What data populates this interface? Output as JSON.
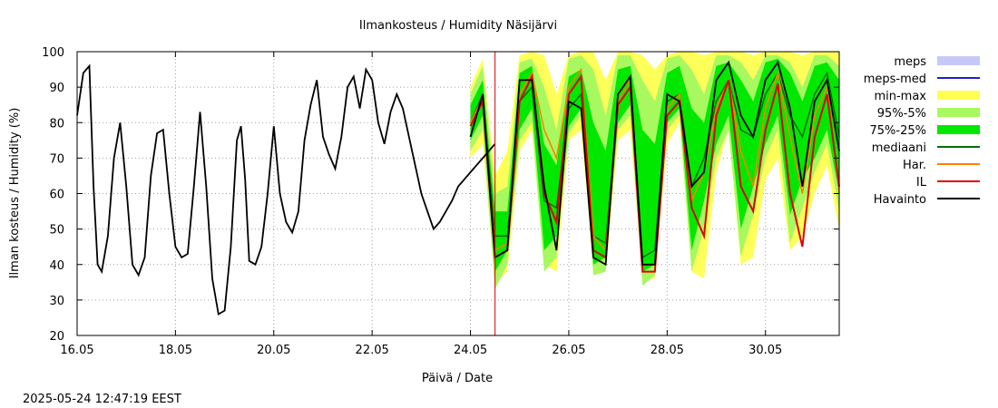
{
  "chart_data": {
    "type": "line",
    "title": "Ilmankosteus / Humidity  Näsijärvi",
    "xlabel": "Päivä / Date",
    "ylabel": "Ilman kosteus / Humidity (%)",
    "timestamp": "2025-05-24 12:47:19 EEST",
    "xlim": [
      "2025-05-16",
      "2025-05-31T12:00"
    ],
    "ylim": [
      20,
      100
    ],
    "yticks": [
      20,
      30,
      40,
      50,
      60,
      70,
      80,
      90,
      100
    ],
    "xticks": [
      {
        "date": "2025-05-16",
        "label": "16.05"
      },
      {
        "date": "2025-05-18",
        "label": "18.05"
      },
      {
        "date": "2025-05-20",
        "label": "20.05"
      },
      {
        "date": "2025-05-22",
        "label": "22.05"
      },
      {
        "date": "2025-05-24",
        "label": "24.05"
      },
      {
        "date": "2025-05-26",
        "label": "26.05"
      },
      {
        "date": "2025-05-28",
        "label": "28.05"
      },
      {
        "date": "2025-05-30",
        "label": "30.05"
      }
    ],
    "grid": true,
    "legend_position": "right",
    "forecast_start": "2025-05-24T12:00",
    "forecast_line_color": "#e00000",
    "legend": [
      {
        "label": "meps",
        "kind": "band",
        "color": "#c8c8f8"
      },
      {
        "label": "meps-med",
        "kind": "line",
        "color": "#2020c0"
      },
      {
        "label": "min-max",
        "kind": "band",
        "color": "#ffff50"
      },
      {
        "label": "95%-5%",
        "kind": "band",
        "color": "#a8f860"
      },
      {
        "label": "75%-25%",
        "kind": "band",
        "color": "#00e800"
      },
      {
        "label": "mediaani",
        "kind": "line",
        "color": "#007000"
      },
      {
        "label": "Har.",
        "kind": "line",
        "color": "#ff8000"
      },
      {
        "label": "IL",
        "kind": "line",
        "color": "#e00000"
      },
      {
        "label": "Havainto",
        "kind": "line",
        "color": "#000000"
      }
    ],
    "observation": {
      "name": "Havainto",
      "x": [
        "2025-05-16T00:00",
        "2025-05-16T03:00",
        "2025-05-16T06:00",
        "2025-05-16T08:00",
        "2025-05-16T10:00",
        "2025-05-16T12:00",
        "2025-05-16T15:00",
        "2025-05-16T18:00",
        "2025-05-16T21:00",
        "2025-05-17T00:00",
        "2025-05-17T03:00",
        "2025-05-17T06:00",
        "2025-05-17T09:00",
        "2025-05-17T12:00",
        "2025-05-17T15:00",
        "2025-05-17T18:00",
        "2025-05-17T21:00",
        "2025-05-18T00:00",
        "2025-05-18T03:00",
        "2025-05-18T06:00",
        "2025-05-18T09:00",
        "2025-05-18T12:00",
        "2025-05-18T15:00",
        "2025-05-18T18:00",
        "2025-05-18T21:00",
        "2025-05-19T00:00",
        "2025-05-19T03:00",
        "2025-05-19T06:00",
        "2025-05-19T08:00",
        "2025-05-19T10:00",
        "2025-05-19T12:00",
        "2025-05-19T15:00",
        "2025-05-19T18:00",
        "2025-05-19T21:00",
        "2025-05-20T00:00",
        "2025-05-20T03:00",
        "2025-05-20T06:00",
        "2025-05-20T09:00",
        "2025-05-20T12:00",
        "2025-05-20T15:00",
        "2025-05-20T18:00",
        "2025-05-20T21:00",
        "2025-05-21T00:00",
        "2025-05-21T03:00",
        "2025-05-21T06:00",
        "2025-05-21T09:00",
        "2025-05-21T12:00",
        "2025-05-21T15:00",
        "2025-05-21T18:00",
        "2025-05-21T21:00",
        "2025-05-22T00:00",
        "2025-05-22T03:00",
        "2025-05-22T06:00",
        "2025-05-22T09:00",
        "2025-05-22T12:00",
        "2025-05-22T15:00",
        "2025-05-22T18:00",
        "2025-05-22T21:00",
        "2025-05-23T00:00",
        "2025-05-23T03:00",
        "2025-05-23T06:00",
        "2025-05-23T09:00",
        "2025-05-23T12:00",
        "2025-05-23T15:00",
        "2025-05-23T18:00",
        "2025-05-23T21:00",
        "2025-05-24T00:00",
        "2025-05-24T03:00",
        "2025-05-24T06:00",
        "2025-05-24T09:00",
        "2025-05-24T12:00"
      ],
      "y": [
        82,
        94,
        96,
        62,
        40,
        38,
        48,
        70,
        80,
        62,
        40,
        37,
        42,
        65,
        77,
        78,
        60,
        45,
        42,
        43,
        62,
        83,
        62,
        36,
        26,
        27,
        45,
        75,
        79,
        64,
        41,
        40,
        45,
        60,
        79,
        60,
        52,
        49,
        55,
        75,
        85,
        92,
        76,
        71,
        67,
        76,
        90,
        93,
        84,
        95,
        92,
        80,
        74,
        83,
        88,
        84,
        76,
        68,
        60,
        55,
        50,
        52,
        55,
        58,
        62,
        64,
        66,
        68,
        70,
        72,
        74
      ]
    },
    "forecast_x": [
      "2025-05-24T00:00",
      "2025-05-24T06:00",
      "2025-05-24T12:00",
      "2025-05-24T18:00",
      "2025-05-25T00:00",
      "2025-05-25T06:00",
      "2025-05-25T12:00",
      "2025-05-25T18:00",
      "2025-05-26T00:00",
      "2025-05-26T06:00",
      "2025-05-26T12:00",
      "2025-05-26T18:00",
      "2025-05-27T00:00",
      "2025-05-27T06:00",
      "2025-05-27T12:00",
      "2025-05-27T18:00",
      "2025-05-28T00:00",
      "2025-05-28T06:00",
      "2025-05-28T12:00",
      "2025-05-28T18:00",
      "2025-05-29T00:00",
      "2025-05-29T06:00",
      "2025-05-29T12:00",
      "2025-05-29T18:00",
      "2025-05-30T00:00",
      "2025-05-30T06:00",
      "2025-05-30T12:00",
      "2025-05-30T18:00",
      "2025-05-31T00:00",
      "2025-05-31T06:00",
      "2025-05-31T12:00"
    ],
    "bands": {
      "meps": {
        "low": [
          73,
          82,
          55,
          45,
          85,
          93,
          60,
          52,
          78,
          93,
          62,
          45,
          80,
          90,
          62,
          45,
          76,
          85,
          58,
          55,
          82,
          90,
          72,
          60,
          82,
          90,
          68,
          55,
          80,
          88,
          70
        ],
        "high": [
          90,
          96,
          65,
          50,
          95,
          97,
          92,
          60,
          95,
          97,
          85,
          55,
          94,
          96,
          85,
          52,
          92,
          95,
          84,
          68,
          94,
          96,
          92,
          78,
          95,
          97,
          92,
          78,
          94,
          96,
          92
        ]
      },
      "minmax": {
        "low": [
          70,
          74,
          35,
          38,
          72,
          78,
          40,
          38,
          75,
          78,
          40,
          38,
          75,
          78,
          36,
          36,
          74,
          80,
          38,
          36,
          66,
          78,
          40,
          42,
          64,
          70,
          44,
          48,
          60,
          68,
          50
        ],
        "high": [
          90,
          98,
          65,
          72,
          99,
          100,
          99,
          88,
          99,
          100,
          100,
          92,
          100,
          100,
          99,
          95,
          99,
          100,
          100,
          99,
          100,
          100,
          100,
          99,
          100,
          100,
          100,
          99,
          100,
          100,
          100
        ]
      },
      "p95": {
        "low": [
          72,
          78,
          33,
          40,
          75,
          80,
          38,
          42,
          77,
          82,
          37,
          38,
          78,
          82,
          34,
          37,
          78,
          82,
          38,
          50,
          70,
          78,
          42,
          54,
          70,
          78,
          46,
          56,
          66,
          74,
          55
        ],
        "high": [
          88,
          96,
          60,
          62,
          97,
          98,
          90,
          78,
          98,
          99,
          95,
          82,
          99,
          99,
          92,
          86,
          98,
          99,
          95,
          88,
          99,
          99,
          97,
          92,
          99,
          99,
          97,
          90,
          99,
          99,
          96
        ]
      },
      "p75": {
        "low": [
          75,
          82,
          38,
          44,
          78,
          84,
          44,
          48,
          79,
          84,
          40,
          42,
          80,
          85,
          38,
          40,
          80,
          84,
          44,
          58,
          74,
          82,
          50,
          62,
          74,
          82,
          54,
          64,
          70,
          78,
          60
        ],
        "high": [
          85,
          92,
          55,
          55,
          94,
          96,
          74,
          68,
          93,
          95,
          80,
          72,
          95,
          96,
          78,
          74,
          94,
          96,
          84,
          80,
          96,
          97,
          92,
          86,
          97,
          98,
          94,
          86,
          96,
          97,
          92
        ]
      }
    },
    "lines": {
      "mediaani": [
        80,
        88,
        48,
        48,
        86,
        90,
        58,
        56,
        84,
        88,
        48,
        46,
        86,
        92,
        42,
        44,
        86,
        88,
        62,
        70,
        86,
        92,
        78,
        76,
        88,
        94,
        82,
        76,
        88,
        94,
        76
      ],
      "har": [
        80,
        87,
        44,
        46,
        88,
        94,
        78,
        70,
        90,
        95,
        48,
        44,
        86,
        92,
        40,
        40,
        84,
        88,
        58,
        66,
        84,
        92,
        72,
        62,
        84,
        94,
        76,
        60,
        82,
        90,
        60
      ],
      "il": [
        79,
        86,
        42,
        44,
        86,
        93,
        60,
        52,
        88,
        93,
        44,
        42,
        85,
        90,
        38,
        38,
        82,
        86,
        56,
        48,
        82,
        92,
        62,
        55,
        78,
        91,
        60,
        45,
        76,
        88,
        62
      ],
      "havainto_fc": [
        76,
        88,
        42,
        44,
        92,
        92,
        62,
        44,
        86,
        84,
        42,
        40,
        88,
        93,
        40,
        40,
        88,
        86,
        62,
        66,
        92,
        97,
        82,
        76,
        92,
        97,
        84,
        62,
        86,
        92,
        72
      ]
    }
  }
}
